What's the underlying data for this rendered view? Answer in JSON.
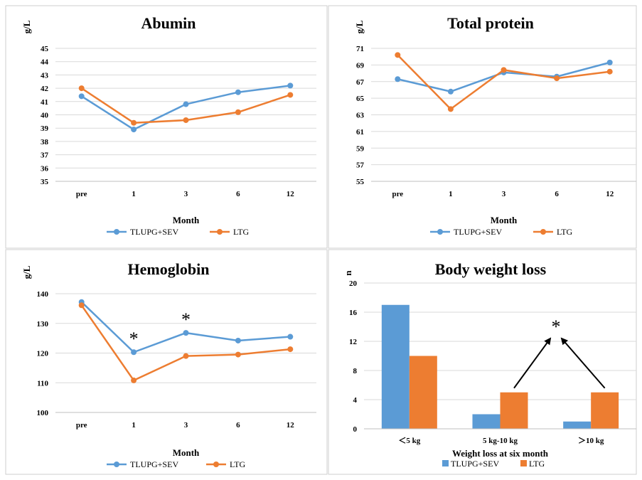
{
  "colors": {
    "series1": "#5b9bd5",
    "series2": "#ed7d31",
    "grid": "#d9d9d9",
    "axis": "#bfbfbf",
    "panel_border": "#cfcfcf",
    "arrow": "#000000"
  },
  "chart_data": [
    {
      "type": "line",
      "title": "Abumin",
      "ylabel": "g/L",
      "xlabel": "Month",
      "categories": [
        "pre",
        "1",
        "3",
        "6",
        "12"
      ],
      "ylim": [
        35,
        45
      ],
      "yticks": [
        35,
        36,
        37,
        38,
        39,
        40,
        41,
        42,
        43,
        44,
        45
      ],
      "grid": true,
      "legend": "bottom",
      "series": [
        {
          "name": "TLUPG+SEV",
          "values": [
            41.4,
            38.9,
            40.8,
            41.7,
            42.2
          ]
        },
        {
          "name": "LTG",
          "values": [
            42.0,
            39.4,
            39.6,
            40.2,
            41.5
          ]
        }
      ],
      "annotations": []
    },
    {
      "type": "line",
      "title": "Total protein",
      "ylabel": "g/L",
      "xlabel": "Month",
      "categories": [
        "pre",
        "1",
        "3",
        "6",
        "12"
      ],
      "ylim": [
        55,
        71
      ],
      "yticks": [
        55,
        57,
        59,
        61,
        63,
        65,
        67,
        69,
        71
      ],
      "grid": true,
      "legend": "bottom",
      "series": [
        {
          "name": "TLUPG+SEV",
          "values": [
            67.3,
            65.8,
            68.1,
            67.6,
            69.3
          ]
        },
        {
          "name": "LTG",
          "values": [
            70.2,
            63.7,
            68.4,
            67.4,
            68.2
          ]
        }
      ],
      "annotations": []
    },
    {
      "type": "line",
      "title": "Hemoglobin",
      "ylabel": "g/L",
      "xlabel": "Month",
      "categories": [
        "pre",
        "1",
        "3",
        "6",
        "12"
      ],
      "ylim": [
        100,
        140
      ],
      "yticks": [
        100,
        110,
        120,
        130,
        140
      ],
      "grid": true,
      "legend": "bottom",
      "series": [
        {
          "name": "TLUPG+SEV",
          "values": [
            137.2,
            120.3,
            126.8,
            124.2,
            125.5
          ]
        },
        {
          "name": "LTG",
          "values": [
            136.1,
            110.8,
            119.0,
            119.5,
            121.3
          ]
        }
      ],
      "annotations": [
        {
          "text": "*",
          "category": "1"
        },
        {
          "text": "*",
          "category": "3"
        }
      ]
    },
    {
      "type": "bar",
      "title": "Body weight loss",
      "ylabel": "n",
      "xlabel": "Weight loss at six month",
      "categories": [
        "<5 kg",
        "5 kg-10 kg",
        ">10 kg"
      ],
      "ylim": [
        0,
        20
      ],
      "yticks": [
        0,
        4,
        8,
        12,
        16,
        20
      ],
      "grid": true,
      "legend": "bottom",
      "series": [
        {
          "name": "TLUPG+SEV",
          "values": [
            17,
            2,
            1
          ]
        },
        {
          "name": "LTG",
          "values": [
            10,
            5,
            5
          ]
        }
      ],
      "annotations": [
        {
          "text": "*",
          "arrows_from": [
            "5 kg-10 kg",
            ">10 kg"
          ],
          "series": "LTG"
        }
      ]
    }
  ]
}
